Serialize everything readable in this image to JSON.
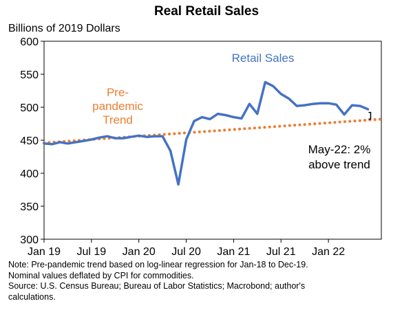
{
  "chart_data": {
    "type": "line",
    "title": "Real Retail Sales",
    "ylabel": "Billions of 2019 Dollars",
    "xlabel": "",
    "ylim": [
      300,
      600
    ],
    "yticks": [
      300,
      350,
      400,
      450,
      500,
      550,
      600
    ],
    "x_tick_labels": [
      "Jan 19",
      "Jul 19",
      "Jan 20",
      "Jul 20",
      "Jan 21",
      "Jul 21",
      "Jan 22"
    ],
    "x_tick_months": [
      0,
      6,
      12,
      18,
      24,
      30,
      36
    ],
    "month_range": [
      0,
      42.7
    ],
    "series": [
      {
        "name": "Retail Sales",
        "color": "#4472C4",
        "style": "solid",
        "months": [
          0,
          1,
          2,
          3,
          4,
          5,
          6,
          7,
          8,
          9,
          10,
          11,
          12,
          13,
          14,
          15,
          16,
          17,
          18,
          19,
          20,
          21,
          22,
          23,
          24,
          25,
          26,
          27,
          28,
          29,
          30,
          31,
          32,
          33,
          34,
          35,
          36,
          37,
          38,
          39,
          40,
          41
        ],
        "values": [
          445,
          444,
          447,
          445,
          447,
          449,
          451,
          454,
          456,
          453,
          453,
          455,
          457,
          455,
          456,
          456,
          434,
          383,
          451,
          479,
          485,
          482,
          490,
          488,
          485,
          483,
          505,
          490,
          538,
          532,
          520,
          513,
          502,
          503,
          505,
          506,
          506,
          504,
          489,
          503,
          502,
          497
        ]
      },
      {
        "name": "Pre-pandemic Trend",
        "color": "#ED7D31",
        "style": "dotted",
        "months": [
          0,
          42.7
        ],
        "values": [
          446,
          482
        ]
      }
    ],
    "end_marker": {
      "month": 41,
      "values": [
        482,
        492
      ],
      "color": "#000000"
    },
    "annotations": {
      "retail_sales": "Retail Sales",
      "trend_lines": [
        "Pre-",
        "pandemic",
        "Trend"
      ],
      "gap_lines": [
        "May-22: 2%",
        "above trend"
      ]
    }
  },
  "notes": [
    "Note: Pre-pandemic trend based on log-linear regression for Jan-18 to Dec-19.",
    "Nominal values deflated by CPI for commodities.",
    "Source: U.S. Census Bureau; Bureau of Labor Statistics; Macrobond; author's",
    "calculations."
  ]
}
